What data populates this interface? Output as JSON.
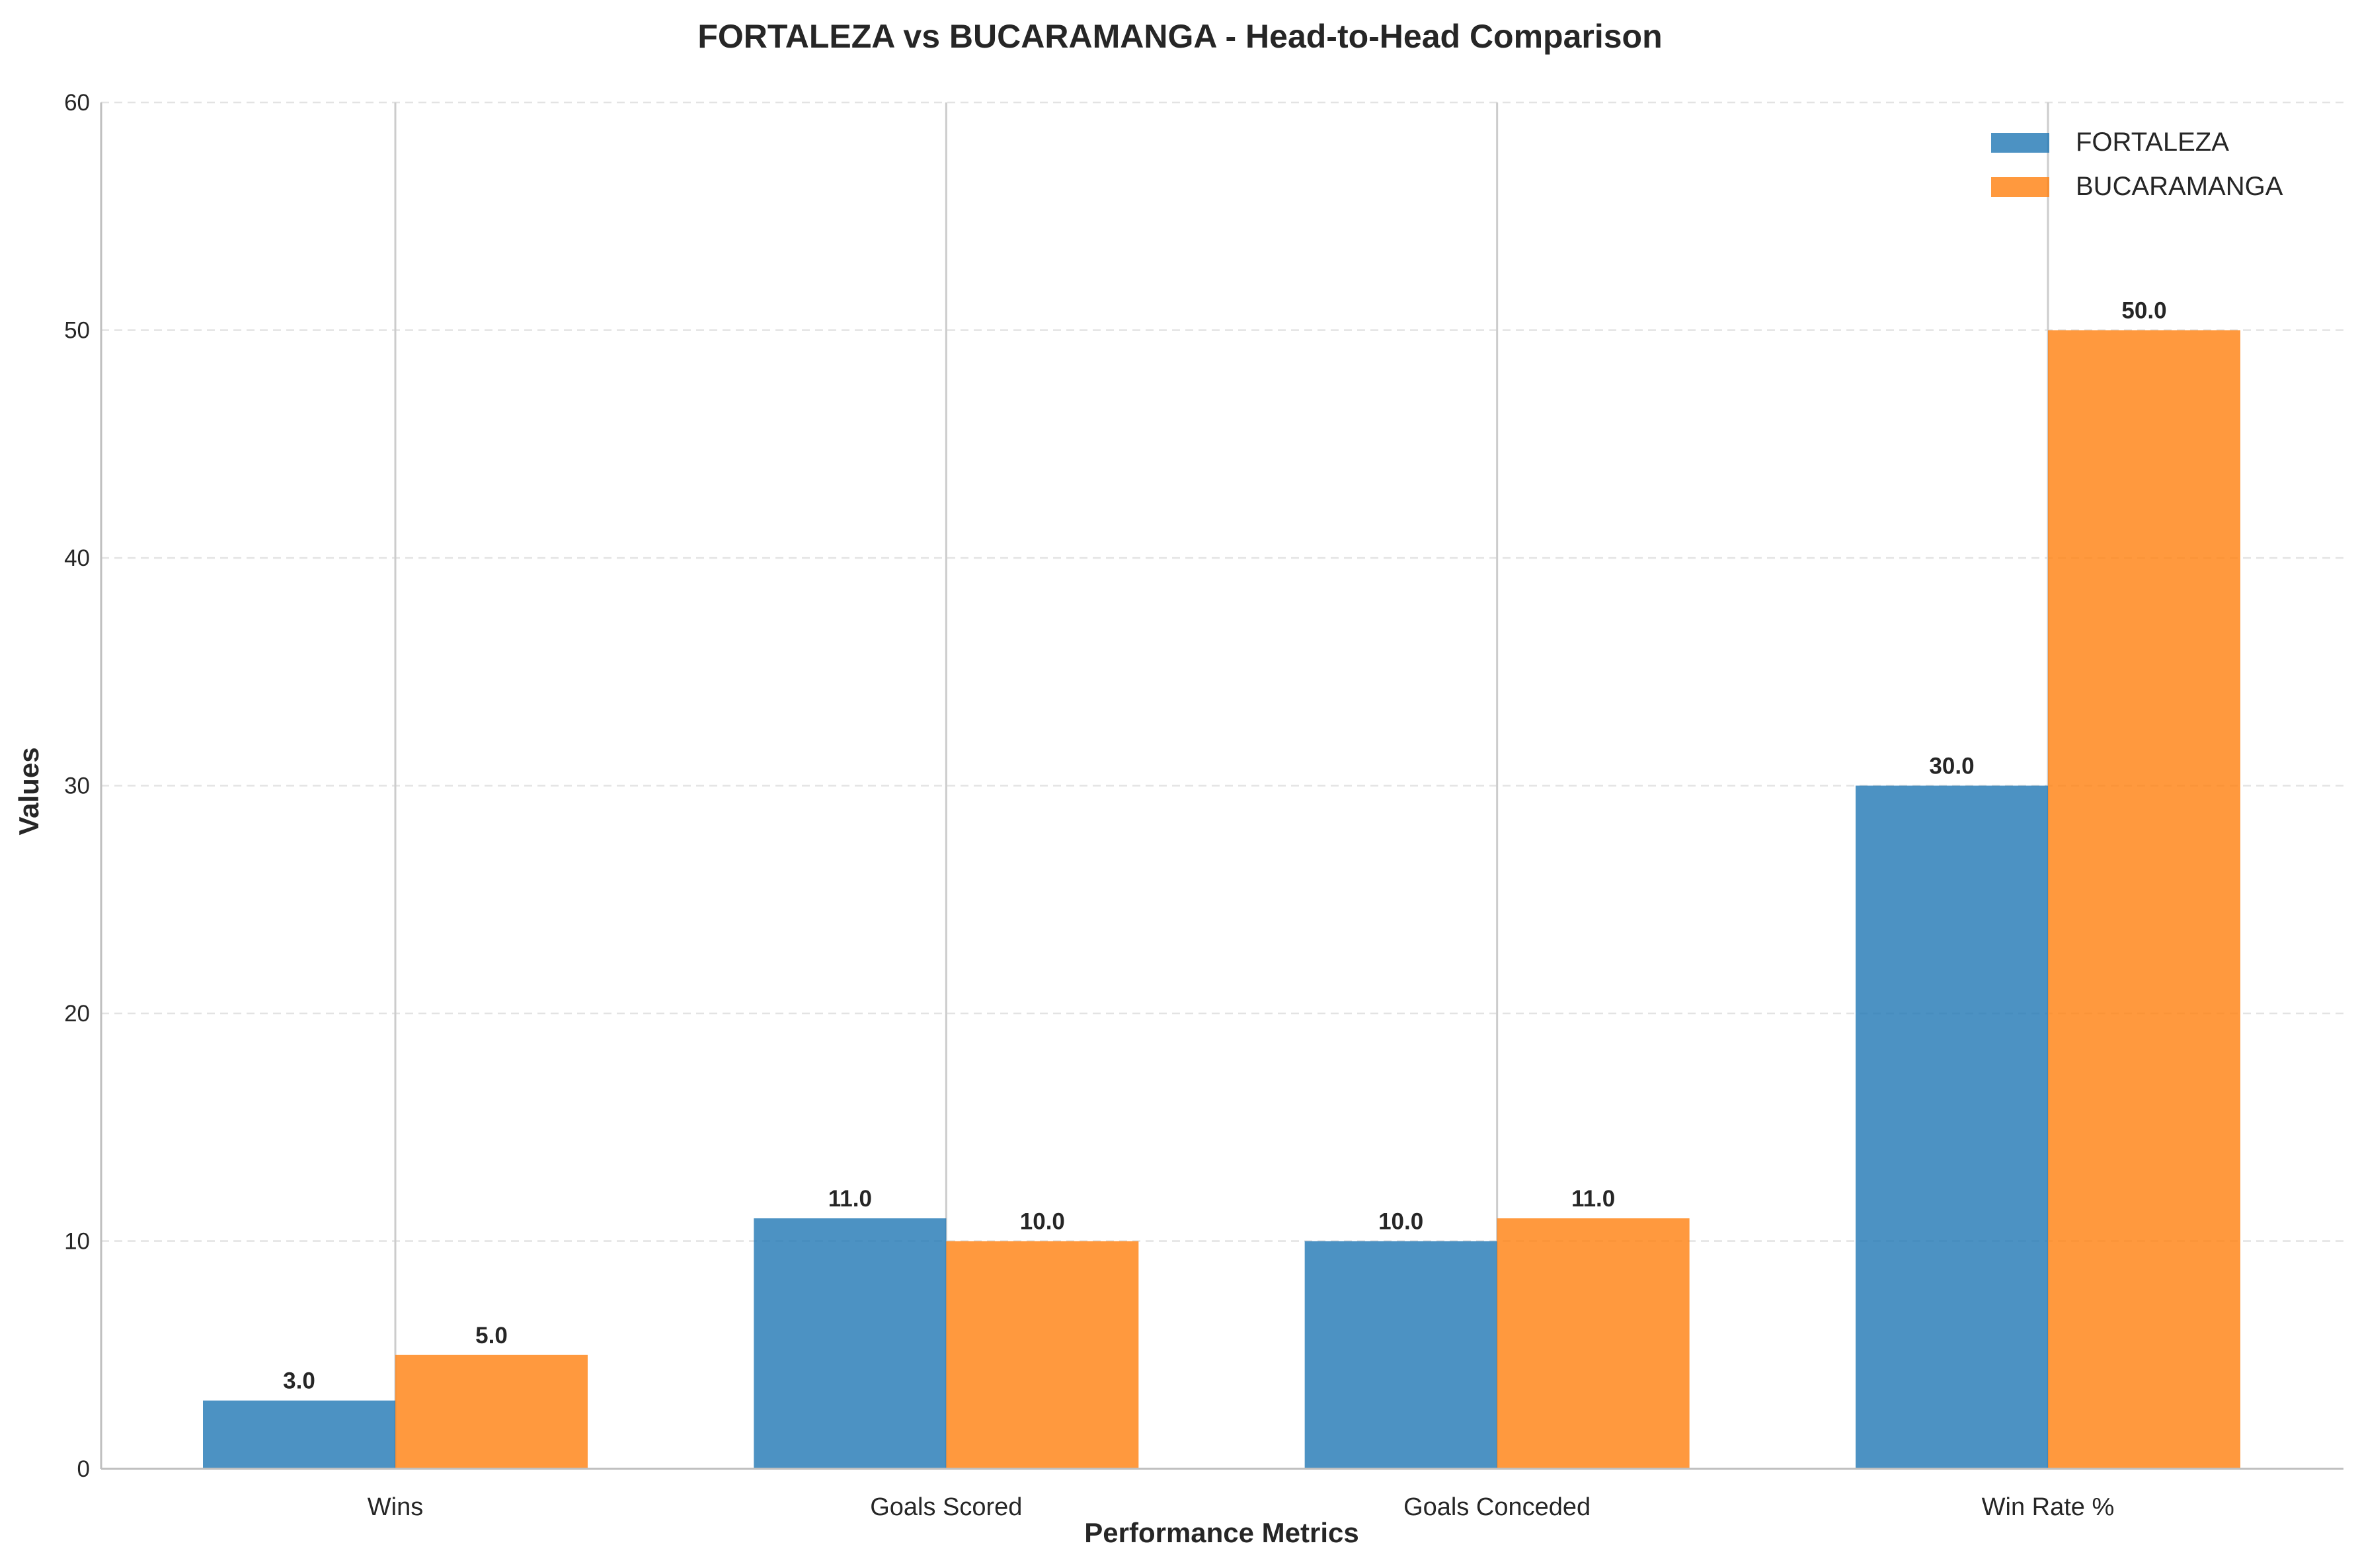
{
  "chart_data": {
    "type": "bar",
    "title": "FORTALEZA vs BUCARAMANGA - Head-to-Head Comparison",
    "xlabel": "Performance Metrics",
    "ylabel": "Values",
    "categories": [
      "Wins",
      "Goals Scored",
      "Goals Conceded",
      "Win Rate %"
    ],
    "series": [
      {
        "name": "FORTALEZA",
        "color": "#1f77b4",
        "values": [
          3.0,
          11.0,
          10.0,
          30.0
        ],
        "labels": [
          "3.0",
          "11.0",
          "10.0",
          "30.0"
        ]
      },
      {
        "name": "BUCARAMANGA",
        "color": "#ff7f0e",
        "values": [
          5.0,
          10.0,
          11.0,
          50.0
        ],
        "labels": [
          "5.0",
          "10.0",
          "11.0",
          "50.0"
        ]
      }
    ],
    "ylim": [
      0,
      60
    ],
    "yticks": [
      0,
      10,
      20,
      30,
      40,
      50,
      60
    ],
    "ytick_labels": [
      "0",
      "10",
      "20",
      "30",
      "40",
      "50",
      "60"
    ],
    "grid": "y-dashed",
    "legend_position": "top-right"
  }
}
